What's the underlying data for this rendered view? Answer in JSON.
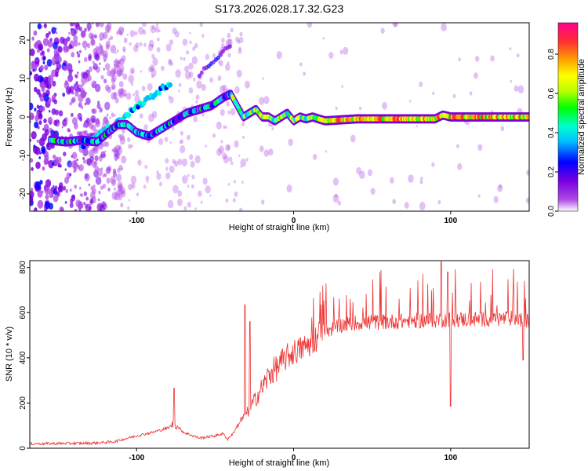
{
  "title": "S173.2026.028.17.32.G23",
  "chart_data": [
    {
      "type": "heatmap",
      "title": "S173.2026.028.17.32.G23",
      "xlabel": "Height of straight line (km)",
      "ylabel": "Frequency (Hz)",
      "xlim": [
        -168,
        150
      ],
      "ylim": [
        -24.5,
        24.5
      ],
      "xticks": [
        -100,
        0,
        100
      ],
      "yticks": [
        -20,
        -10,
        0,
        10,
        20
      ],
      "ridge": {
        "x": [
          -155,
          -145,
          -135,
          -125,
          -118,
          -112,
          -106,
          -100,
          -92,
          -84,
          -76,
          -68,
          -60,
          -52,
          -45,
          -40,
          -36,
          -32,
          -28,
          -24,
          -20,
          -16,
          -12,
          -8,
          -4,
          0,
          4,
          8,
          12,
          20,
          40,
          60,
          80,
          90,
          95,
          100,
          120,
          150
        ],
        "frequency": [
          -6,
          -6.5,
          -6,
          -6.5,
          -4,
          -2,
          -2,
          -4,
          -5,
          -3,
          -1,
          1,
          2,
          3,
          5,
          6,
          3,
          0,
          1,
          2,
          0,
          0,
          -1,
          0,
          1,
          -1,
          0,
          -0.5,
          0,
          -1,
          -0.5,
          -0.5,
          -0.5,
          -0.5,
          0.5,
          0,
          0,
          0
        ]
      },
      "colorbar": {
        "label": "Normalized spectral amplitude",
        "range": [
          0,
          0.96
        ],
        "ticks": [
          "0.0",
          "0.2",
          "0.4",
          "0.6",
          "0.8"
        ],
        "colors": [
          "#ffffff",
          "#b04ce6",
          "#7a00e0",
          "#0000ff",
          "#00bfff",
          "#00ffd0",
          "#00ff00",
          "#c0ff00",
          "#ffff00",
          "#ffa500",
          "#ff3030",
          "#ff0090"
        ]
      }
    },
    {
      "type": "line",
      "xlabel": "Height of straight line (km)",
      "ylabel": "SNR (10 * v/v)",
      "xlim": [
        -168,
        150
      ],
      "ylim": [
        0,
        830
      ],
      "xticks": [
        -100,
        0,
        100
      ],
      "yticks": [
        0,
        200,
        400,
        600,
        800
      ],
      "color": "#ee3333",
      "trend": {
        "x": [
          -168,
          -130,
          -115,
          -100,
          -90,
          -80,
          -76,
          -70,
          -60,
          -50,
          -45,
          -42,
          -38,
          -35,
          -30,
          -25,
          -20,
          -15,
          -10,
          -5,
          0,
          5,
          10,
          15,
          20,
          25,
          30,
          40,
          60,
          80,
          100,
          120,
          140,
          150
        ],
        "snr": [
          20,
          22,
          28,
          55,
          70,
          90,
          110,
          70,
          45,
          55,
          65,
          40,
          70,
          110,
          150,
          210,
          270,
          330,
          360,
          400,
          425,
          440,
          460,
          490,
          520,
          530,
          545,
          555,
          560,
          565,
          570,
          570,
          575,
          560
        ]
      },
      "spikes": [
        {
          "x": -76,
          "snr": 265
        },
        {
          "x": -31,
          "snr": 635
        },
        {
          "x": -28,
          "snr": 560
        },
        {
          "x": 94,
          "snr": 825
        },
        {
          "x": 98,
          "snr": 780
        },
        {
          "x": 100,
          "snr": 185
        },
        {
          "x": 146,
          "snr": 390
        }
      ]
    }
  ]
}
